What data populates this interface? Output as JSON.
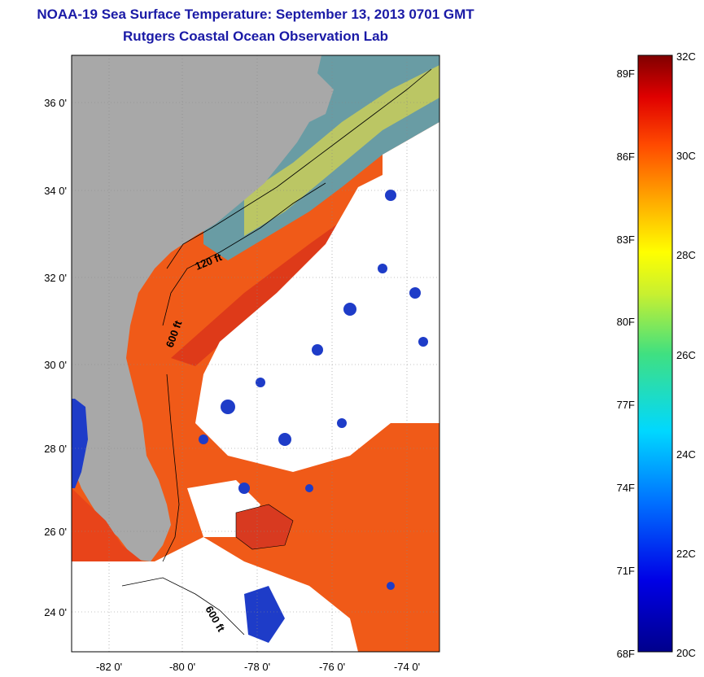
{
  "header": {
    "title": "NOAA-19 Sea Surface Temperature:  September 13, 2013 0701 GMT",
    "subtitle": "Rutgers Coastal Ocean Observation Lab"
  },
  "map": {
    "lat_labels": [
      "36 0'",
      "34 0'",
      "32 0'",
      "30 0'",
      "28 0'",
      "26 0'",
      "24 0'"
    ],
    "lon_labels": [
      "-82 0'",
      "-80 0'",
      "-78 0'",
      "-76 0'",
      "-74 0'"
    ],
    "isobath_labels": [
      "120 ft",
      "600 ft",
      "600 ft"
    ],
    "colors": {
      "land": "#a8a8a8",
      "cloud": "#ffffff",
      "warm": "#f04a14",
      "cool": "#1e3cc8"
    }
  },
  "colorbar": {
    "fahrenheit_labels": [
      "89F",
      "86F",
      "83F",
      "80F",
      "77F",
      "74F",
      "71F",
      "68F"
    ],
    "celsius_labels": [
      "32C",
      "30C",
      "28C",
      "26C",
      "24C",
      "22C",
      "20C"
    ],
    "range_c": [
      20,
      32
    ]
  }
}
